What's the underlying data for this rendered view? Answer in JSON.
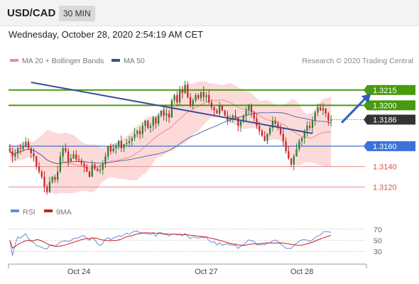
{
  "header": {
    "symbol": "USD/CAD",
    "timeframe": "30 MIN"
  },
  "date_line": "Wednesday, October 28, 2020 2:54:19 AM CET",
  "legend": {
    "ma20": "MA 20 + Bollinger Bands",
    "ma50": "MA 50",
    "copyright": "Research © 2020 Trading Central"
  },
  "rsi_legend": {
    "rsi": "RSI",
    "ma9": "9MA"
  },
  "colors": {
    "green": "#4a9a0f",
    "blue": "#3b72d9",
    "red": "#e88a8a",
    "dark": "#333333",
    "trend": "#3a4f96",
    "band": "#fcdada",
    "ma50": "#3a4f96",
    "up": "#2e7d32",
    "down": "#c62828",
    "rsi": "#6a8ad8",
    "ma9": "#cc1f1f"
  },
  "chart_data": [
    {
      "type": "candlestick",
      "x_ticks": [
        "Oct 24",
        "Oct 27",
        "Oct 28"
      ],
      "ylim": [
        1.3105,
        1.3235
      ],
      "levels": [
        {
          "value": 1.3215,
          "label": "1.3215",
          "kind": "resistance"
        },
        {
          "value": 1.32,
          "label": "1.3200",
          "kind": "resistance"
        },
        {
          "value": 1.3186,
          "label": "1.3186",
          "kind": "last-price"
        },
        {
          "value": 1.316,
          "label": "1.3160",
          "kind": "pivot"
        },
        {
          "value": 1.314,
          "label": "1.3140",
          "kind": "support"
        },
        {
          "value": 1.312,
          "label": "1.3120",
          "kind": "support"
        }
      ],
      "trendline": {
        "from": [
          8,
          1.32225
        ],
        "to": [
          114,
          1.31725
        ]
      },
      "forecast_arrow": {
        "from": [
          125,
          1.3183
        ],
        "to": [
          136,
          1.32115
        ]
      },
      "close": [
        1.3155,
        1.315,
        1.3153,
        1.3158,
        1.3157,
        1.316,
        1.3164,
        1.3158,
        1.3153,
        1.315,
        1.314,
        1.3135,
        1.313,
        1.312,
        1.3115,
        1.3125,
        1.313,
        1.3127,
        1.3135,
        1.315,
        1.3158,
        1.3155,
        1.3145,
        1.3148,
        1.3152,
        1.3147,
        1.3146,
        1.3143,
        1.314,
        1.3135,
        1.313,
        1.3142,
        1.3138,
        1.3136,
        1.3137,
        1.3143,
        1.315,
        1.316,
        1.3155,
        1.3158,
        1.316,
        1.3165,
        1.3158,
        1.3162,
        1.3163,
        1.3165,
        1.3168,
        1.3172,
        1.3175,
        1.3172,
        1.318,
        1.3185,
        1.3178,
        1.318,
        1.3188,
        1.3182,
        1.319,
        1.3195,
        1.319,
        1.3192,
        1.3188,
        1.3205,
        1.321,
        1.3203,
        1.3215,
        1.3212,
        1.322,
        1.3208,
        1.32,
        1.3205,
        1.321,
        1.3207,
        1.3213,
        1.3208,
        1.321,
        1.3203,
        1.3198,
        1.3195,
        1.3192,
        1.32,
        1.3195,
        1.319,
        1.3185,
        1.3186,
        1.319,
        1.3188,
        1.318,
        1.3184,
        1.319,
        1.3195,
        1.32,
        1.3193,
        1.3187,
        1.318,
        1.3175,
        1.317,
        1.3165,
        1.3172,
        1.3178,
        1.3185,
        1.3182,
        1.3178,
        1.3172,
        1.3165,
        1.3155,
        1.3148,
        1.3142,
        1.315,
        1.3157,
        1.3165,
        1.3168,
        1.3175,
        1.318,
        1.3178,
        1.3185,
        1.3193,
        1.3198,
        1.3195,
        1.3197,
        1.3192,
        1.3185,
        1.3186
      ],
      "series": [
        {
          "name": "MA 20 + Bollinger Bands"
        },
        {
          "name": "MA 50"
        }
      ]
    },
    {
      "type": "line",
      "ylim": [
        20,
        80
      ],
      "y_ticks": [
        30,
        50,
        70
      ],
      "series": [
        {
          "name": "RSI"
        },
        {
          "name": "9MA"
        }
      ]
    }
  ]
}
